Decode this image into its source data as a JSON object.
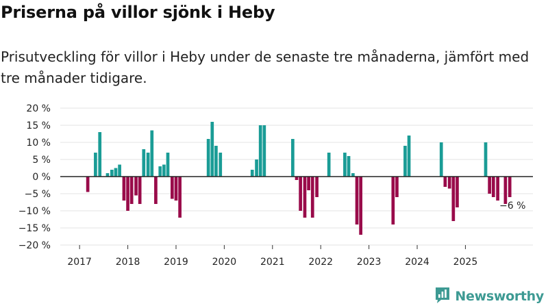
{
  "title": "Priserna på villor sjönk i Heby",
  "subtitle": "Prisutveckling för villor i Heby under de senaste tre månaderna, jämfört med tre månader tidigare.",
  "brand": {
    "name": "Newsworthy",
    "icon": "newsworthy-logo-icon"
  },
  "colors": {
    "positive": "#1a9c96",
    "negative": "#990b4a",
    "grid": "#e3e3e3",
    "zero": "#222222"
  },
  "chart_data": {
    "type": "bar",
    "title": "Priserna på villor sjönk i Heby",
    "xlabel": "",
    "ylabel": "",
    "unit": "%",
    "ylim": [
      -20,
      20
    ],
    "yticks": [
      20,
      15,
      10,
      5,
      0,
      -5,
      -10,
      -15,
      -20
    ],
    "ytick_labels": [
      "20 %",
      "15 %",
      "10 %",
      "5 %",
      "0 %",
      "−5 %",
      "−10 %",
      "−15 %",
      "−20 %"
    ],
    "xlim": [
      2016.6,
      2026.4
    ],
    "xticks": [
      "2017",
      "2018",
      "2019",
      "2020",
      "2021",
      "2022",
      "2023",
      "2024",
      "2025"
    ],
    "grid": true,
    "annotation": {
      "text": "−6 %",
      "x": 2025.92,
      "y": -6
    },
    "bars": [
      {
        "x": 2017.17,
        "value": -4.5
      },
      {
        "x": 2017.33,
        "value": 7
      },
      {
        "x": 2017.42,
        "value": 13
      },
      {
        "x": 2017.58,
        "value": 1
      },
      {
        "x": 2017.67,
        "value": 2
      },
      {
        "x": 2017.75,
        "value": 2.5
      },
      {
        "x": 2017.83,
        "value": 3.5
      },
      {
        "x": 2017.92,
        "value": -7
      },
      {
        "x": 2018.0,
        "value": -10
      },
      {
        "x": 2018.08,
        "value": -8
      },
      {
        "x": 2018.17,
        "value": -5.5
      },
      {
        "x": 2018.25,
        "value": -8
      },
      {
        "x": 2018.33,
        "value": 8
      },
      {
        "x": 2018.42,
        "value": 7
      },
      {
        "x": 2018.5,
        "value": 13.5
      },
      {
        "x": 2018.58,
        "value": -8
      },
      {
        "x": 2018.67,
        "value": 3
      },
      {
        "x": 2018.75,
        "value": 3.5
      },
      {
        "x": 2018.83,
        "value": 7
      },
      {
        "x": 2018.92,
        "value": -6.5
      },
      {
        "x": 2019.0,
        "value": -7
      },
      {
        "x": 2019.08,
        "value": -12
      },
      {
        "x": 2019.67,
        "value": 11
      },
      {
        "x": 2019.75,
        "value": 16
      },
      {
        "x": 2019.83,
        "value": 9
      },
      {
        "x": 2019.92,
        "value": 7
      },
      {
        "x": 2020.58,
        "value": 2
      },
      {
        "x": 2020.67,
        "value": 5
      },
      {
        "x": 2020.75,
        "value": 15
      },
      {
        "x": 2020.83,
        "value": 15
      },
      {
        "x": 2021.42,
        "value": 11
      },
      {
        "x": 2021.5,
        "value": -1
      },
      {
        "x": 2021.58,
        "value": -10
      },
      {
        "x": 2021.67,
        "value": -12
      },
      {
        "x": 2021.75,
        "value": -4
      },
      {
        "x": 2021.83,
        "value": -12
      },
      {
        "x": 2021.92,
        "value": -6
      },
      {
        "x": 2022.17,
        "value": 7
      },
      {
        "x": 2022.5,
        "value": 7
      },
      {
        "x": 2022.58,
        "value": 6
      },
      {
        "x": 2022.67,
        "value": 1
      },
      {
        "x": 2022.75,
        "value": -14
      },
      {
        "x": 2022.83,
        "value": -17
      },
      {
        "x": 2023.5,
        "value": -14
      },
      {
        "x": 2023.58,
        "value": -6
      },
      {
        "x": 2023.75,
        "value": 9
      },
      {
        "x": 2023.83,
        "value": 12
      },
      {
        "x": 2024.5,
        "value": 10
      },
      {
        "x": 2024.58,
        "value": -3
      },
      {
        "x": 2024.67,
        "value": -3.5
      },
      {
        "x": 2024.75,
        "value": -13
      },
      {
        "x": 2024.83,
        "value": -9
      },
      {
        "x": 2025.42,
        "value": 10
      },
      {
        "x": 2025.5,
        "value": -5
      },
      {
        "x": 2025.58,
        "value": -6
      },
      {
        "x": 2025.67,
        "value": -7
      },
      {
        "x": 2025.83,
        "value": -8
      },
      {
        "x": 2025.92,
        "value": -6
      }
    ]
  }
}
